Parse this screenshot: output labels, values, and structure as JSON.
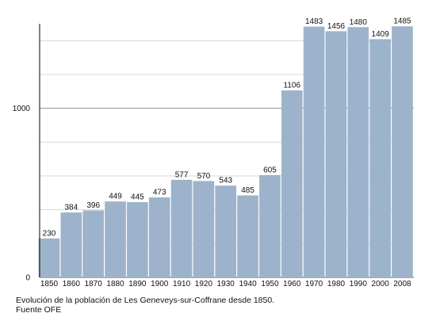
{
  "chart_data": {
    "type": "bar",
    "categories": [
      "1850",
      "1860",
      "1870",
      "1880",
      "1890",
      "1900",
      "1910",
      "1920",
      "1930",
      "1940",
      "1950",
      "1960",
      "1970",
      "1980",
      "1990",
      "2000",
      "2008"
    ],
    "values": [
      230,
      384,
      396,
      449,
      445,
      473,
      577,
      570,
      543,
      485,
      605,
      1106,
      1483,
      1456,
      1480,
      1409,
      1485
    ],
    "data_labels": [
      "230",
      "384",
      "396",
      "449",
      "445",
      "473",
      "577",
      "570",
      "543",
      "485",
      "605",
      "1106",
      "1483",
      "1456",
      "1480",
      "1409",
      "1485"
    ],
    "ylim": [
      0,
      1500
    ],
    "y_ticks": [
      0,
      1000
    ],
    "y_tick_labels": [
      "0",
      "1000"
    ],
    "minor_gridlines": [
      200,
      400,
      600,
      800,
      1200,
      1400
    ],
    "major_gridlines": [
      1000
    ],
    "grid": true,
    "bar_color": "#9db3cc",
    "caption_line1": "Evolución de la población de Les Geneveys-sur-Coffrane desde 1850.",
    "caption_line2": "Fuente OFE"
  }
}
